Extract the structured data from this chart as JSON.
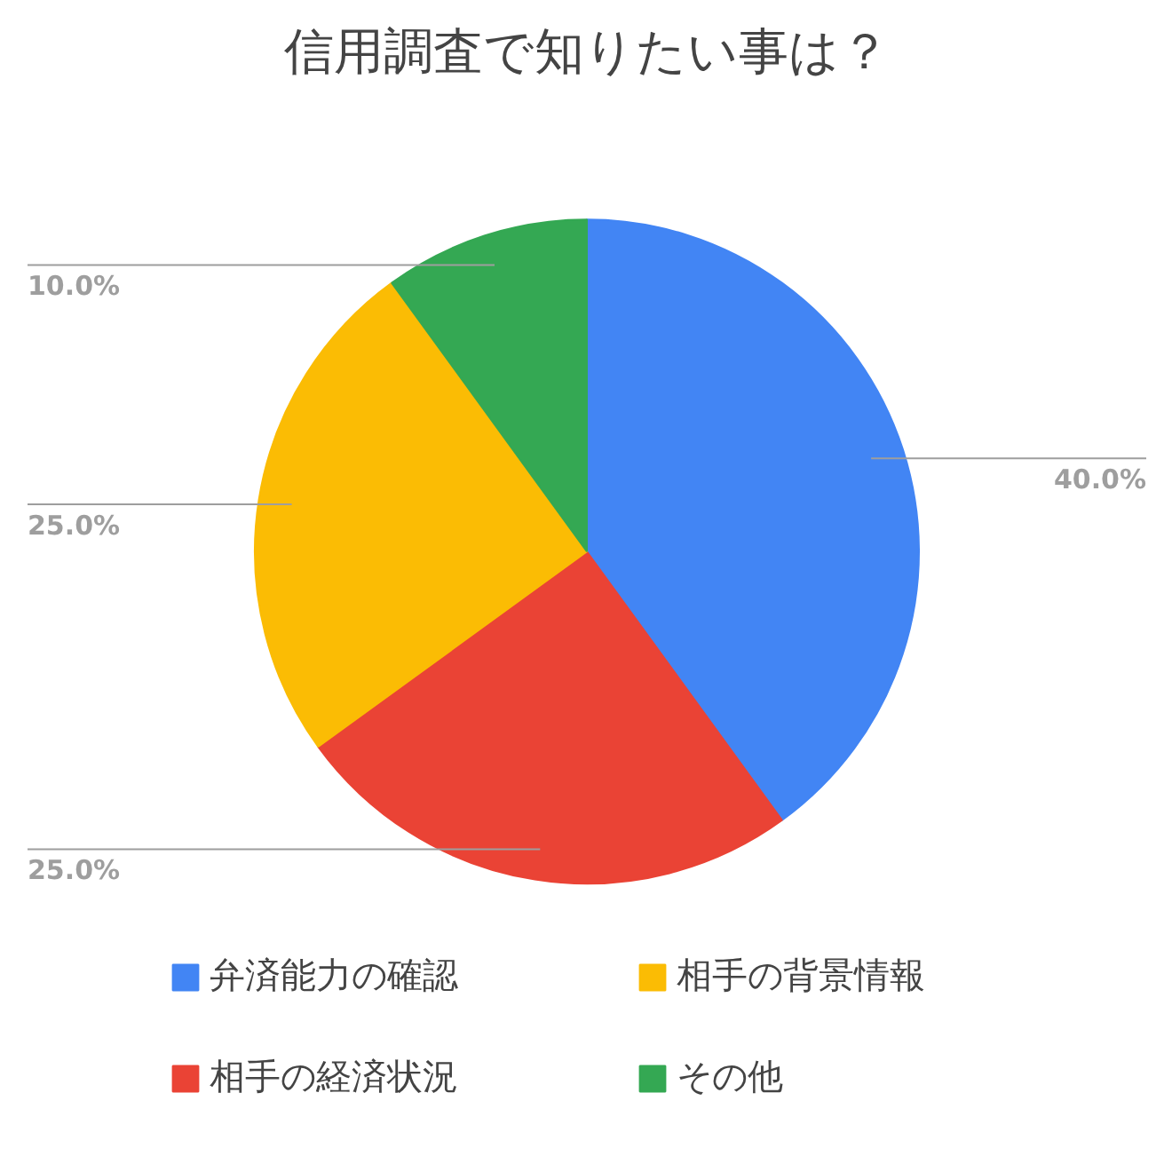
{
  "chart_data": {
    "type": "pie",
    "title": "信用調査で知りたい事は？",
    "categories": [
      "弁済能力の確認",
      "相手の経済状況",
      "相手の背景情報",
      "その他"
    ],
    "values": [
      40,
      25,
      25,
      10
    ],
    "colors": [
      "#4285f4",
      "#ea4335",
      "#fbbc04",
      "#34a853"
    ],
    "value_labels": [
      "40.0%",
      "25.0%",
      "25.0%",
      "10.0%"
    ],
    "legend": "bottom"
  }
}
